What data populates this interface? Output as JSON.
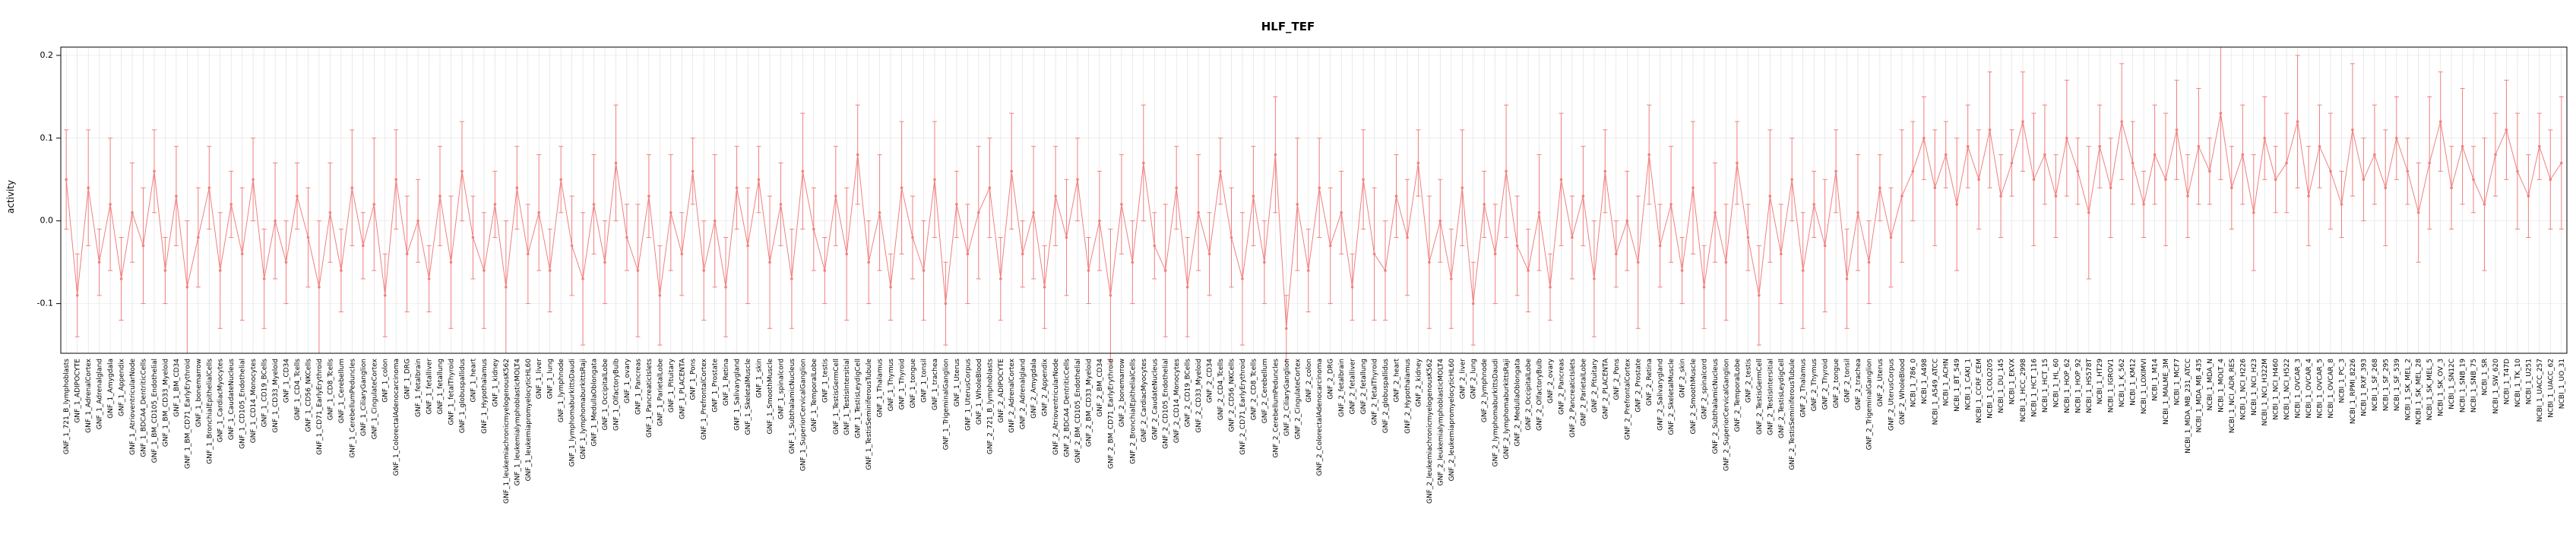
{
  "chart": {
    "title": "HLF_TEF",
    "ylabel": "activity"
  },
  "chart_data": {
    "type": "line",
    "title": "HLF_TEF",
    "xlabel": "",
    "ylabel": "activity",
    "ylim": [
      -0.16,
      0.21
    ],
    "yticks": [
      -0.1,
      0.0,
      0.1,
      0.2
    ],
    "legend": "none",
    "grid": "on",
    "point_color": "#f08080",
    "grid_color": "#dcdcdc",
    "axis_color": "#000000",
    "categories": [
      "GNF_1_721_B_lymphoblasts",
      "GNF_1_ADIPOCYTE",
      "GNF_1_AdrenalCortex",
      "GNF_1_Adrenalgland",
      "GNF_1_Amygdala",
      "GNF_1_Appendix",
      "GNF_1_AtrioventricularNode",
      "GNF_1_BDCA4_DentriticCells",
      "GNF_1_BM_CD105_Endothelial",
      "GNF_1_BM_CD33_Myeloid",
      "GNF_1_BM_CD34",
      "GNF_1_BM_CD71_EarlyErythroid",
      "GNF_1_bonemarrow",
      "GNF_1_BronchialEpithelialCells",
      "GNF_1_CardiacMyocytes",
      "GNF_1_CaudateNucleus",
      "GNF_1_CD105_Endothelial",
      "GNF_1_CD14_Monocytes",
      "GNF_1_CD19_BCells",
      "GNF_1_CD33_Myeloid",
      "GNF_1_CD34",
      "GNF_1_CD4_Tcells",
      "GNF_1_CD56_NKCells",
      "GNF_1_CD71_EarlyErythroid",
      "GNF_1_CD8_Tcells",
      "GNF_1_Cerebellum",
      "GNF_1_CerebellumPeduncles",
      "GNF_1_CiliaryGanglion",
      "GNF_1_CingulateCortex",
      "GNF_1_colon",
      "GNF_1_ColorectalAdenocarcinoma",
      "GNF_1_DRG",
      "GNF_1_fetalbrain",
      "GNF_1_fetalliver",
      "GNF_1_fetallung",
      "GNF_1_fetalThyroid",
      "GNF_1_globuspallidus",
      "GNF_1_heart",
      "GNF_1_Hypothalamus",
      "GNF_1_kidney",
      "GNF_1_leukemiachronicmyelogenousK562",
      "GNF_1_leukemialymphoblasticMOLT4",
      "GNF_1_leukemiapromyelocyticHL60",
      "GNF_1_liver",
      "GNF_1_lung",
      "GNF_1_lymphnode",
      "GNF_1_lymphomaburkittsDaudi",
      "GNF_1_lymphomaburkittsRaji",
      "GNF_1_MedullaOblongata",
      "GNF_1_OccipitalLobe",
      "GNF_1_OlfactoryBulb",
      "GNF_1_ovary",
      "GNF_1_Pancreas",
      "GNF_1_PancreaticIslets",
      "GNF_1_ParietalLobe",
      "GNF_1_Pituitary",
      "GNF_1_PLACENTA",
      "GNF_1_Pons",
      "GNF_1_PrefrontalCortex",
      "GNF_1_Prostate",
      "GNF_1_Retina",
      "GNF_1_Salivarygland",
      "GNF_1_SkeletalMuscle",
      "GNF_1_skin",
      "GNF_1_SmoothMuscle",
      "GNF_1_spinalcord",
      "GNF_1_SubthalamicNucleus",
      "GNF_1_SuperiorCervicalGanglion",
      "GNF_1_TemporalLobe",
      "GNF_1_testis",
      "GNF_1_TestisGermCell",
      "GNF_1_TestisIntersitial",
      "GNF_1_TestisLeydigCell",
      "GNF_1_TestisSeminiferousTubule",
      "GNF_1_Thalamus",
      "GNF_1_Thymus",
      "GNF_1_Thyroid",
      "GNF_1_tongue",
      "GNF_1_tonsil",
      "GNF_1_trachea",
      "GNF_1_TrigeminalGanglion",
      "GNF_1_Uterus",
      "GNF_1_UterusCorpus",
      "GNF_1_WholeBlood",
      "GNF_2_721_B_lymphoblasts",
      "GNF_2_ADIPOCYTE",
      "GNF_2_AdrenalCortex",
      "GNF_2_Adrenalgland",
      "GNF_2_Amygdala",
      "GNF_2_Appendix",
      "GNF_2_AtrioventricularNode",
      "GNF_2_BDCA4_DentriticCells",
      "GNF_2_BM_CD105_Endothelial",
      "GNF_2_BM_CD33_Myeloid",
      "GNF_2_BM_CD34",
      "GNF_2_BM_CD71_EarlyErythroid",
      "GNF_2_bonemarrow",
      "GNF_2_BronchialEpithelialCells",
      "GNF_2_CardiacMyocytes",
      "GNF_2_CaudateNucleus",
      "GNF_2_CD105_Endothelial",
      "GNF_2_CD14_Monocytes",
      "GNF_2_CD19_BCells",
      "GNF_2_CD33_Myeloid",
      "GNF_2_CD34",
      "GNF_2_CD4_Tcells",
      "GNF_2_CD56_NKCells",
      "GNF_2_CD71_EarlyErythroid",
      "GNF_2_CD8_Tcells",
      "GNF_2_Cerebellum",
      "GNF_2_CerebellumPeduncles",
      "GNF_2_CiliaryGanglion",
      "GNF_2_CingulateCortex",
      "GNF_2_colon",
      "GNF_2_ColorectalAdenocarcinoma",
      "GNF_2_DRG",
      "GNF_2_fetalbrain",
      "GNF_2_fetalliver",
      "GNF_2_fetallung",
      "GNF_2_fetalThyroid",
      "GNF_2_globuspallidus",
      "GNF_2_heart",
      "GNF_2_Hypothalamus",
      "GNF_2_kidney",
      "GNF_2_leukemiachronicmyelogenousK562",
      "GNF_2_leukemialymphoblasticMOLT4",
      "GNF_2_leukemiapromyelocyticHL60",
      "GNF_2_liver",
      "GNF_2_lung",
      "GNF_2_lymphnode",
      "GNF_2_lymphomaburkittsDaudi",
      "GNF_2_lymphomaburkittsRaji",
      "GNF_2_MedullaOblongata",
      "GNF_2_OccipitalLobe",
      "GNF_2_OlfactoryBulb",
      "GNF_2_ovary",
      "GNF_2_Pancreas",
      "GNF_2_PancreaticIslets",
      "GNF_2_ParietalLobe",
      "GNF_2_Pituitary",
      "GNF_2_PLACENTA",
      "GNF_2_Pons",
      "GNF_2_PrefrontalCortex",
      "GNF_2_Prostate",
      "GNF_2_Retina",
      "GNF_2_Salivarygland",
      "GNF_2_SkeletalMuscle",
      "GNF_2_skin",
      "GNF_2_SmoothMuscle",
      "GNF_2_spinalcord",
      "GNF_2_SubthalamicNucleus",
      "GNF_2_SuperiorCervicalGanglion",
      "GNF_2_TemporalLobe",
      "GNF_2_testis",
      "GNF_2_TestisGermCell",
      "GNF_2_TestisIntersitial",
      "GNF_2_TestisLeydigCell",
      "GNF_2_TestisSeminiferousTubule",
      "GNF_2_Thalamus",
      "GNF_2_Thymus",
      "GNF_2_Thyroid",
      "GNF_2_tongue",
      "GNF_2_tonsil",
      "GNF_2_trachea",
      "GNF_2_TrigeminalGanglion",
      "GNF_2_Uterus",
      "GNF_2_UterusCorpus",
      "GNF_2_WholeBlood",
      "NCBI_1_786_0",
      "NCBI_1_A498",
      "NCBI_1_A549_ATCC",
      "NCBI_1_ACHN",
      "NCBI_1_BT_549",
      "NCBI_1_CAKI_1",
      "NCBI_1_CCRF_CEM",
      "NCBI_1_COLO205",
      "NCBI_1_DU_145",
      "NCBI_1_EKVX",
      "NCBI_1_HCC_2998",
      "NCBI_1_HCT_116",
      "NCBI_1_HCT_15",
      "NCBI_1_HL_60",
      "NCBI_1_HOP_62",
      "NCBI_1_HOP_92",
      "NCBI_1_HS578T",
      "NCBI_1_HT29",
      "NCBI_1_IGROV1",
      "NCBI_1_K_562",
      "NCBI_1_KM12",
      "NCBI_1_LOXIMVI",
      "NCBI_1_M14",
      "NCBI_1_MALME_3M",
      "NCBI_1_MCF7",
      "NCBI_1_MDA_MB_231_ATCC",
      "NCBI_1_MDA_MB_435",
      "NCBI_1_MDA_N",
      "NCBI_1_MOLT_4",
      "NCBI_1_NCI_ADR_RES",
      "NCBI_1_NCI_H226",
      "NCBI_1_NCI_H23",
      "NCBI_1_NCI_H322M",
      "NCBI_1_NCI_H460",
      "NCBI_1_NCI_H522",
      "NCBI_1_OVCAR_3",
      "NCBI_1_OVCAR_4",
      "NCBI_1_OVCAR_5",
      "NCBI_1_OVCAR_8",
      "NCBI_1_PC_3",
      "NCBI_1_RPMI_8226",
      "NCBI_1_RXF_393",
      "NCBI_1_SF_268",
      "NCBI_1_SF_295",
      "NCBI_1_SF_539",
      "NCBI_1_SK_MEL_2",
      "NCBI_1_SK_MEL_28",
      "NCBI_1_SK_MEL_5",
      "NCBI_1_SK_OV_3",
      "NCBI_1_SN12C",
      "NCBI_1_SNB_19",
      "NCBI_1_SNB_75",
      "NCBI_1_SR",
      "NCBI_1_SW_620",
      "NCBI_1_T47D",
      "NCBI_1_TK_10",
      "NCBI_1_U251",
      "NCBI_1_UACC_257",
      "NCBI_1_UACC_62",
      "NCBI_1_UO_31"
    ],
    "values": [
      0.05,
      -0.09,
      0.04,
      -0.05,
      0.02,
      -0.07,
      0.01,
      -0.03,
      0.06,
      -0.06,
      0.03,
      -0.08,
      -0.02,
      0.04,
      -0.06,
      0.02,
      -0.04,
      0.05,
      -0.07,
      0.0,
      -0.05,
      0.03,
      -0.02,
      -0.08,
      0.01,
      -0.06,
      0.04,
      -0.03,
      0.02,
      -0.09,
      0.05,
      -0.04,
      0.0,
      -0.07,
      0.03,
      -0.05,
      0.06,
      -0.02,
      -0.06,
      0.02,
      -0.08,
      0.04,
      -0.04,
      0.01,
      -0.06,
      0.05,
      -0.03,
      -0.07,
      0.02,
      -0.05,
      0.07,
      -0.02,
      -0.06,
      0.03,
      -0.09,
      0.01,
      -0.04,
      0.06,
      -0.06,
      0.0,
      -0.08,
      0.04,
      -0.03,
      0.05,
      -0.05,
      0.02,
      -0.07,
      0.06,
      -0.01,
      -0.06,
      0.03,
      -0.04,
      0.08,
      -0.05,
      0.01,
      -0.08,
      0.04,
      -0.02,
      -0.06,
      0.05,
      -0.1,
      0.02,
      -0.04,
      0.01,
      0.04,
      -0.07,
      0.06,
      -0.04,
      0.01,
      -0.08,
      0.03,
      -0.02,
      0.05,
      -0.06,
      0.0,
      -0.09,
      0.02,
      -0.05,
      0.07,
      -0.03,
      -0.06,
      0.04,
      -0.08,
      0.01,
      -0.04,
      0.06,
      -0.02,
      -0.07,
      0.03,
      -0.05,
      0.08,
      -0.13,
      0.02,
      -0.06,
      0.04,
      -0.03,
      0.01,
      -0.08,
      0.05,
      -0.04,
      -0.06,
      0.03,
      -0.02,
      0.07,
      -0.05,
      0.0,
      -0.07,
      0.04,
      -0.1,
      0.02,
      -0.04,
      0.06,
      -0.03,
      -0.06,
      0.01,
      -0.08,
      0.05,
      -0.02,
      0.03,
      -0.07,
      0.06,
      -0.04,
      0.0,
      -0.05,
      0.08,
      -0.03,
      0.02,
      -0.06,
      0.04,
      -0.08,
      0.01,
      -0.05,
      0.07,
      -0.02,
      -0.09,
      0.03,
      -0.04,
      0.05,
      -0.06,
      0.02,
      -0.03,
      0.06,
      -0.07,
      0.01,
      -0.05,
      0.04,
      -0.02,
      0.03,
      0.06,
      0.1,
      0.04,
      0.08,
      0.02,
      0.09,
      0.05,
      0.11,
      0.03,
      0.07,
      0.12,
      0.05,
      0.08,
      0.03,
      0.1,
      0.06,
      0.01,
      0.09,
      0.04,
      0.12,
      0.07,
      0.02,
      0.08,
      0.05,
      0.11,
      0.03,
      0.09,
      0.06,
      0.13,
      0.04,
      0.08,
      0.01,
      0.1,
      0.05,
      0.07,
      0.12,
      0.03,
      0.09,
      0.06,
      0.02,
      0.11,
      0.05,
      0.08,
      0.04,
      0.1,
      0.06,
      0.01,
      0.07,
      0.12,
      0.04,
      0.09,
      0.05,
      0.02,
      0.08,
      0.11,
      0.06,
      0.03,
      0.09,
      0.05,
      0.07
    ],
    "errors": [
      0.06,
      0.05,
      0.07,
      0.04,
      0.08,
      0.05,
      0.06,
      0.07,
      0.05,
      0.04,
      0.06,
      0.08,
      0.06,
      0.05,
      0.07,
      0.04,
      0.08,
      0.05,
      0.06,
      0.07,
      0.05,
      0.04,
      0.06,
      0.08,
      0.06,
      0.05,
      0.07,
      0.04,
      0.08,
      0.05,
      0.06,
      0.07,
      0.05,
      0.04,
      0.06,
      0.08,
      0.06,
      0.05,
      0.07,
      0.04,
      0.08,
      0.05,
      0.06,
      0.07,
      0.05,
      0.04,
      0.06,
      0.08,
      0.06,
      0.05,
      0.07,
      0.04,
      0.08,
      0.05,
      0.06,
      0.07,
      0.05,
      0.04,
      0.06,
      0.08,
      0.06,
      0.05,
      0.07,
      0.04,
      0.08,
      0.05,
      0.06,
      0.07,
      0.05,
      0.04,
      0.06,
      0.08,
      0.06,
      0.05,
      0.07,
      0.04,
      0.08,
      0.05,
      0.06,
      0.07,
      0.05,
      0.04,
      0.06,
      0.08,
      0.06,
      0.05,
      0.07,
      0.04,
      0.08,
      0.05,
      0.06,
      0.07,
      0.05,
      0.04,
      0.06,
      0.08,
      0.06,
      0.05,
      0.07,
      0.04,
      0.08,
      0.05,
      0.06,
      0.07,
      0.05,
      0.04,
      0.06,
      0.08,
      0.06,
      0.05,
      0.07,
      0.04,
      0.08,
      0.05,
      0.06,
      0.07,
      0.05,
      0.04,
      0.06,
      0.08,
      0.06,
      0.05,
      0.07,
      0.04,
      0.08,
      0.05,
      0.06,
      0.07,
      0.05,
      0.04,
      0.06,
      0.08,
      0.06,
      0.05,
      0.07,
      0.04,
      0.08,
      0.05,
      0.06,
      0.07,
      0.05,
      0.04,
      0.06,
      0.08,
      0.06,
      0.05,
      0.07,
      0.04,
      0.08,
      0.05,
      0.06,
      0.07,
      0.05,
      0.04,
      0.06,
      0.08,
      0.06,
      0.05,
      0.07,
      0.04,
      0.08,
      0.05,
      0.06,
      0.07,
      0.05,
      0.04,
      0.06,
      0.08,
      0.06,
      0.05,
      0.07,
      0.04,
      0.08,
      0.05,
      0.06,
      0.07,
      0.05,
      0.04,
      0.06,
      0.08,
      0.06,
      0.05,
      0.07,
      0.04,
      0.08,
      0.05,
      0.06,
      0.07,
      0.05,
      0.04,
      0.06,
      0.08,
      0.06,
      0.05,
      0.07,
      0.04,
      0.08,
      0.05,
      0.06,
      0.07,
      0.05,
      0.04,
      0.06,
      0.08,
      0.06,
      0.05,
      0.07,
      0.04,
      0.08,
      0.05,
      0.06,
      0.07,
      0.05,
      0.04,
      0.06,
      0.08,
      0.06,
      0.05,
      0.07,
      0.04,
      0.08,
      0.05,
      0.06,
      0.07,
      0.05,
      0.04,
      0.06,
      0.08
    ]
  }
}
